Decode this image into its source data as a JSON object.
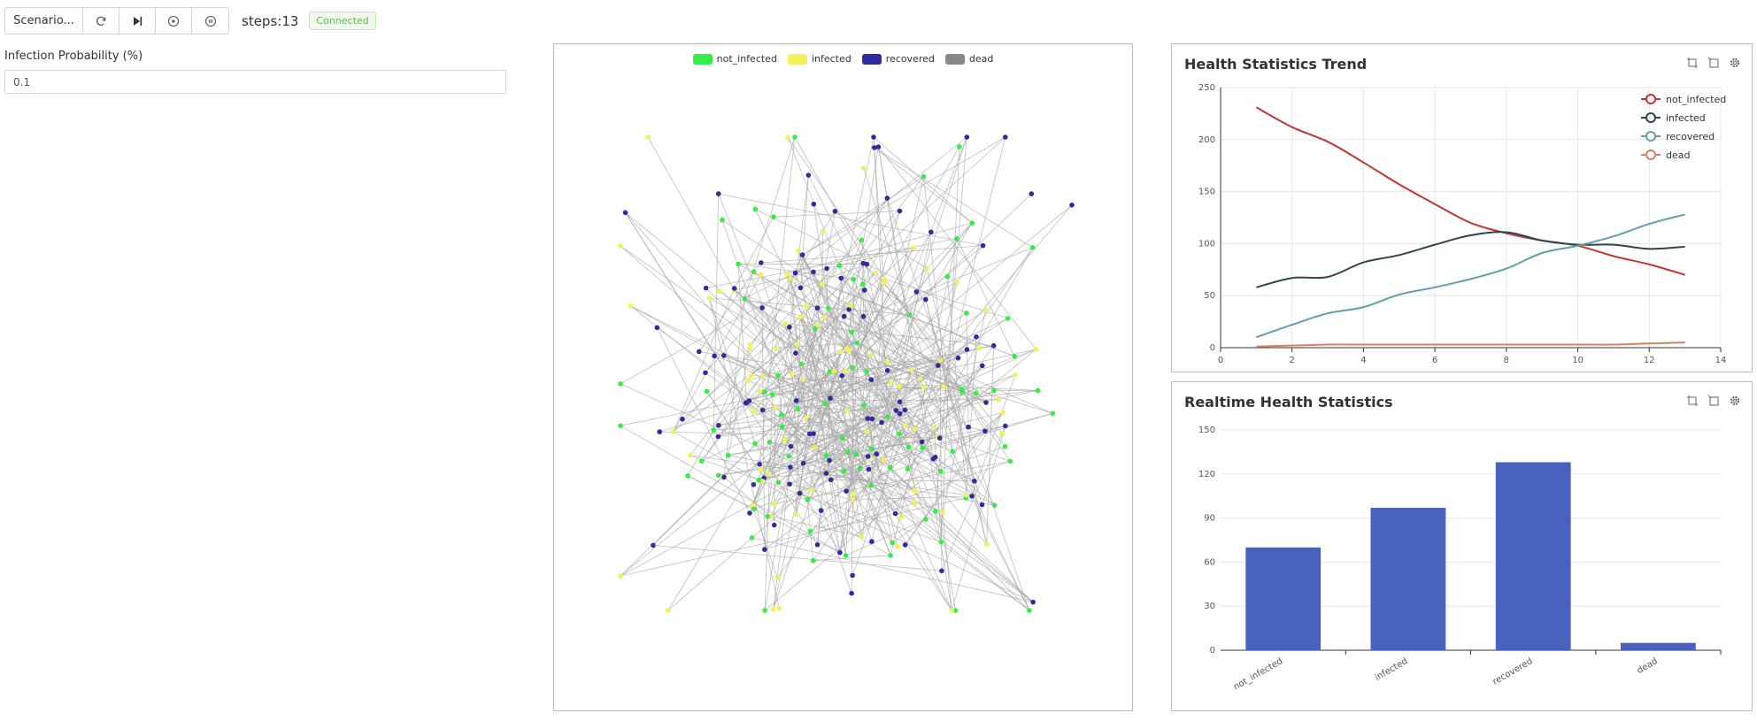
{
  "toolbar": {
    "scenario_label": "Scenario...",
    "steps_text": "steps:13",
    "status": "Connected"
  },
  "params": {
    "infection_label": "Infection Probability (%)",
    "infection_value": "0.1"
  },
  "network": {
    "legend": [
      {
        "label": "not_infected",
        "color": "#33ee44"
      },
      {
        "label": "infected",
        "color": "#f5f05a"
      },
      {
        "label": "recovered",
        "color": "#2e2c9e"
      },
      {
        "label": "dead",
        "color": "#888888"
      }
    ],
    "edge_color": "#aaaaaa"
  },
  "trend": {
    "title": "Health Statistics Trend",
    "tools": [
      "zoom-icon",
      "zoom-reset-icon",
      "gear-icon"
    ]
  },
  "realtime": {
    "title": "Realtime Health Statistics",
    "tools": [
      "zoom-icon",
      "zoom-reset-icon",
      "gear-icon"
    ]
  },
  "chart_data": [
    {
      "type": "line",
      "title": "Health Statistics Trend",
      "x": [
        1,
        2,
        3,
        4,
        5,
        6,
        7,
        8,
        9,
        10,
        11,
        12,
        13
      ],
      "xlim": [
        0,
        14
      ],
      "xticks": [
        0,
        2,
        4,
        6,
        8,
        10,
        12,
        14
      ],
      "ylim": [
        0,
        250
      ],
      "yticks": [
        0,
        50,
        100,
        150,
        200,
        250
      ],
      "grid": true,
      "legend_position": "top-right",
      "series": [
        {
          "name": "not_infected",
          "color": "#c23531",
          "values": [
            231,
            212,
            198,
            178,
            157,
            138,
            120,
            110,
            103,
            98,
            88,
            80,
            70
          ]
        },
        {
          "name": "infected",
          "color": "#2f4554",
          "values": [
            58,
            67,
            68,
            82,
            89,
            99,
            108,
            111,
            103,
            99,
            99,
            95,
            97
          ]
        },
        {
          "name": "recovered",
          "color": "#61a0a8",
          "values": [
            10,
            22,
            33,
            39,
            51,
            58,
            66,
            76,
            91,
            98,
            107,
            119,
            128
          ]
        },
        {
          "name": "dead",
          "color": "#d48265",
          "values": [
            1,
            2,
            3,
            3,
            3,
            3,
            3,
            3,
            3,
            3,
            3,
            4,
            5
          ]
        }
      ]
    },
    {
      "type": "bar",
      "title": "Realtime Health Statistics",
      "categories": [
        "not_infected",
        "infected",
        "recovered",
        "dead"
      ],
      "values": [
        70,
        97,
        128,
        5
      ],
      "color": "#4a62bf",
      "ylim": [
        0,
        150
      ],
      "yticks": [
        0,
        30,
        60,
        90,
        120,
        150
      ],
      "grid": true
    }
  ]
}
